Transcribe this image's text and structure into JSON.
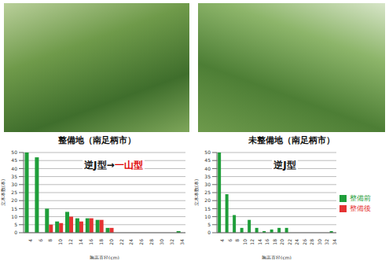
{
  "photos": [
    {
      "caption": "整備地（南足柄市）"
    },
    {
      "caption": "未整備地（南足柄市）"
    }
  ],
  "chart_data": [
    {
      "type": "bar",
      "annotation": "逆J型→一山型",
      "categories": [
        "4",
        "6",
        "8",
        "10",
        "12",
        "14",
        "16",
        "18",
        "20",
        "22",
        "24",
        "26",
        "28",
        "30",
        "32",
        "34"
      ],
      "series": [
        {
          "name": "整備前",
          "color": "#1f9e3a",
          "values": [
            50,
            47,
            15,
            7,
            13,
            9,
            9,
            8,
            3,
            0,
            0,
            0,
            0,
            0,
            0,
            1
          ]
        },
        {
          "name": "整備後",
          "color": "#e53333",
          "values": [
            0,
            0,
            5,
            6,
            10,
            7,
            9,
            8,
            3,
            0,
            0,
            0,
            0,
            0,
            0,
            0
          ]
        }
      ],
      "x_label": "胸高直径(cm)",
      "y_label": "立木本数(本)",
      "ylim": [
        0,
        50
      ],
      "yticks": [
        0,
        5,
        10,
        15,
        20,
        25,
        30,
        35,
        40,
        45,
        50
      ],
      "grid": true
    },
    {
      "type": "bar",
      "annotation": "逆J型",
      "categories": [
        "4",
        "6",
        "8",
        "10",
        "12",
        "14",
        "16",
        "18",
        "20",
        "22",
        "24",
        "26",
        "28",
        "30",
        "32",
        "34"
      ],
      "series": [
        {
          "name": "整備前",
          "color": "#1f9e3a",
          "values": [
            50,
            24,
            11,
            3,
            8,
            3,
            1,
            2,
            3,
            3,
            0,
            0,
            0,
            0,
            0,
            1
          ]
        },
        {
          "name": "整備後",
          "color": "#e53333",
          "values": [
            null,
            null,
            null,
            null,
            null,
            null,
            null,
            null,
            null,
            null,
            null,
            null,
            null,
            null,
            null,
            null
          ]
        }
      ],
      "x_label": "胸高直径(cm)",
      "y_label": "立木本数(本)",
      "ylim": [
        0,
        50
      ],
      "yticks": [
        0,
        5,
        10,
        15,
        20,
        25,
        30,
        35,
        40,
        45,
        50
      ],
      "grid": true,
      "legend": "right"
    }
  ]
}
